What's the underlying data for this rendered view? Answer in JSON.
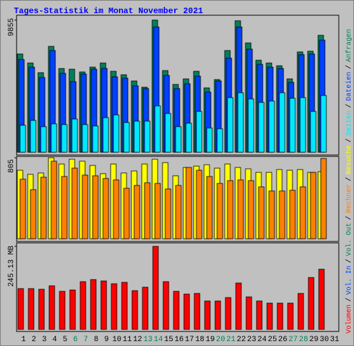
{
  "chart_data": [
    {
      "type": "bar",
      "title": "Tages-Statistik im Monat November 2021",
      "ylim": [
        0,
        9855
      ],
      "yticks": [
        9855
      ],
      "series": [
        {
          "name": "Anfragen",
          "color": "#00805c",
          "values": [
            7327,
            6656,
            5934,
            7895,
            6244,
            6192,
            5986,
            6347,
            6656,
            6037,
            5779,
            5315,
            4850,
            9855,
            6089,
            5057,
            5470,
            6037,
            4799,
            5418,
            7585,
            9804,
            8153,
            6863,
            6656,
            6450,
            5470,
            7482,
            7534,
            8720,
            null
          ]
        },
        {
          "name": "Dateien",
          "color": "#0040ff",
          "values": [
            6914,
            6347,
            5573,
            7585,
            5882,
            5263,
            5831,
            6192,
            6244,
            5624,
            5521,
            4954,
            4747,
            9340,
            5728,
            4747,
            5108,
            5676,
            4489,
            5315,
            7018,
            9340,
            7688,
            6553,
            6347,
            6244,
            5212,
            7276,
            7327,
            8359,
            null
          ]
        },
        {
          "name": "Seiten",
          "color": "#00e8ff",
          "values": [
            2012,
            2374,
            1909,
            2116,
            2064,
            2477,
            2064,
            1961,
            2580,
            2786,
            2219,
            2322,
            2322,
            3457,
            2890,
            1909,
            2167,
            3044,
            1806,
            1754,
            4076,
            4438,
            3973,
            3715,
            3818,
            4438,
            4025,
            4076,
            3044,
            4231,
            null
          ]
        }
      ]
    },
    {
      "type": "bar",
      "ylim": [
        0,
        805
      ],
      "yticks": [
        805
      ],
      "series": [
        {
          "name": "Besuche",
          "color": "#ffff00",
          "values": [
            681,
            640,
            654,
            805,
            743,
            791,
            771,
            729,
            647,
            743,
            654,
            674,
            743,
            791,
            757,
            626,
            709,
            722,
            736,
            702,
            743,
            709,
            695,
            660,
            660,
            688,
            681,
            688,
            660,
            667,
            null
          ]
        },
        {
          "name": "Rechner",
          "color": "#ff8000",
          "values": [
            592,
            488,
            612,
            771,
            619,
            702,
            633,
            626,
            599,
            585,
            502,
            530,
            557,
            550,
            495,
            530,
            709,
            681,
            619,
            550,
            578,
            585,
            578,
            516,
            475,
            475,
            482,
            516,
            660,
            798,
            null
          ]
        }
      ]
    },
    {
      "type": "bar",
      "ylim": [
        0,
        245.13
      ],
      "yticks": [
        {
          "value": 245.13,
          "label": "245.13 MB"
        }
      ],
      "categories": [
        "1",
        "2",
        "3",
        "4",
        "5",
        "6",
        "7",
        "8",
        "9",
        "10",
        "11",
        "12",
        "13",
        "14",
        "15",
        "16",
        "17",
        "18",
        "19",
        "20",
        "21",
        "22",
        "23",
        "24",
        "25",
        "26",
        "27",
        "28",
        "29",
        "30",
        "31"
      ],
      "category_colors": [
        "#000000",
        "#000000",
        "#000000",
        "#000000",
        "#000000",
        "#00805c",
        "#00805c",
        "#000000",
        "#000000",
        "#000000",
        "#000000",
        "#000000",
        "#00805c",
        "#00805c",
        "#000000",
        "#000000",
        "#000000",
        "#000000",
        "#000000",
        "#00805c",
        "#00805c",
        "#000000",
        "#000000",
        "#000000",
        "#000000",
        "#000000",
        "#00805c",
        "#00805c",
        "#000000",
        "#000000",
        "#000000"
      ],
      "series": [
        {
          "name": "Volumen",
          "color": "#ff0000",
          "values": [
            120.5,
            120.5,
            118.5,
            128.7,
            112.4,
            116.4,
            140.9,
            147.1,
            143.0,
            134.8,
            138.9,
            114.4,
            124.6,
            245.13,
            140.9,
            112.4,
            104.2,
            106.2,
            83.8,
            83.8,
            94.0,
            136.9,
            96.0,
            83.8,
            77.6,
            77.6,
            77.6,
            106.2,
            153.2,
            177.7,
            null
          ]
        }
      ],
      "extra_legend": [
        {
          "name": "Vol. In",
          "color": "#0040ff"
        },
        {
          "name": "Vol. Out",
          "color": "#00805c"
        }
      ],
      "legend_separator": "/"
    }
  ]
}
